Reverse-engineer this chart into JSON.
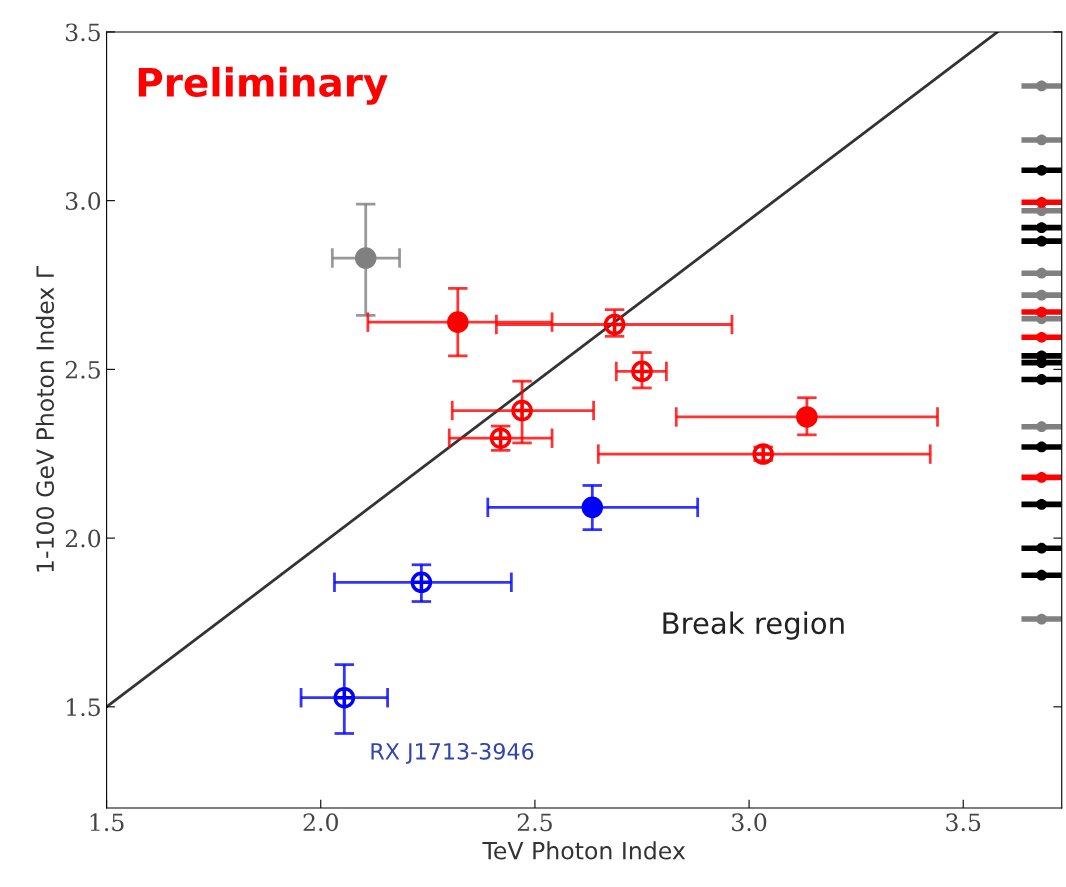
{
  "chart_data": {
    "type": "scatter",
    "xlabel": "TeV Photon Index",
    "ylabel": "1-100 GeV Photon Index Γ",
    "xlim": [
      1.5,
      3.73
    ],
    "ylim": [
      1.2,
      3.5
    ],
    "xticks": [
      {
        "value": 1.5,
        "label": "1.5"
      },
      {
        "value": 2.0,
        "label": "2.0"
      },
      {
        "value": 2.5,
        "label": "2.5"
      },
      {
        "value": 3.0,
        "label": "3.0"
      },
      {
        "value": 3.5,
        "label": "3.5"
      }
    ],
    "yticks": [
      {
        "value": 1.5,
        "label": "1.5"
      },
      {
        "value": 2.0,
        "label": "2.0"
      },
      {
        "value": 2.5,
        "label": "2.5"
      },
      {
        "value": 3.0,
        "label": "3.0"
      },
      {
        "value": 3.5,
        "label": "3.5"
      }
    ],
    "grid": false,
    "legend": false,
    "marker": "circle",
    "annotations": [
      "Preliminary",
      "Break region",
      {
        "text": "RX J1713-3946",
        "x": 2.055,
        "y": 1.527
      }
    ],
    "series": [
      {
        "type": "line",
        "color": "#333333",
        "marker": "none",
        "x": [
          1.5,
          3.58
        ],
        "values": [
          1.5,
          3.5
        ]
      },
      {
        "color": "#808080",
        "x": [
          2.105
        ],
        "values": [
          2.83
        ],
        "errors": [
          [
            2.66,
            2.99
          ]
        ],
        "xerrors": [
          [
            2.027,
            2.184
          ]
        ]
      },
      {
        "color": "#ff0000",
        "x": [
          2.32,
          3.135
        ],
        "values": [
          2.64,
          2.359
        ],
        "errors": [
          [
            2.54,
            2.74
          ],
          [
            2.306,
            2.416
          ]
        ],
        "xerrors": [
          [
            2.11,
            2.54
          ],
          [
            2.83,
            3.44
          ]
        ]
      },
      {
        "color": "#ff0000",
        "marker": "cross",
        "x": [
          2.686,
          2.75,
          2.47,
          2.42,
          3.033
        ],
        "values": [
          2.633,
          2.494,
          2.378,
          2.296,
          2.249
        ],
        "errors": [
          [
            2.598,
            2.677
          ],
          [
            2.445,
            2.55
          ],
          [
            2.282,
            2.465
          ],
          [
            2.26,
            2.332
          ],
          [
            2.23,
            2.27
          ]
        ],
        "xerrors": [
          [
            2.41,
            2.96
          ],
          [
            2.69,
            2.807
          ],
          [
            2.307,
            2.637
          ],
          [
            2.3,
            2.54
          ],
          [
            2.648,
            3.423
          ]
        ]
      },
      {
        "color": "#0000ff",
        "x": [
          2.634
        ],
        "values": [
          2.091
        ],
        "errors": [
          [
            2.025,
            2.156
          ]
        ],
        "xerrors": [
          [
            2.39,
            2.88
          ]
        ]
      },
      {
        "color": "#0000ff",
        "marker": "cross",
        "x": [
          2.235,
          2.055
        ],
        "values": [
          1.869,
          1.527
        ],
        "errors": [
          [
            1.812,
            1.921
          ],
          [
            1.421,
            1.625
          ]
        ],
        "xerrors": [
          [
            2.032,
            2.445
          ],
          [
            1.954,
            2.156
          ]
        ]
      },
      {
        "color": "#808080",
        "x": [
          3.683,
          3.683,
          3.683,
          3.683,
          3.683,
          3.683,
          3.683,
          3.683
        ],
        "values": [
          3.34,
          3.18,
          2.97,
          2.785,
          2.72,
          2.65,
          2.33,
          1.76
        ],
        "xerrors": [
          0.047,
          0.047,
          0.047,
          0.047,
          0.047,
          0.047,
          0.047,
          0.047
        ]
      },
      {
        "color": "#000000",
        "x": [
          3.683,
          3.683,
          3.683,
          3.683,
          3.683,
          3.683,
          3.683,
          3.683,
          3.683,
          3.683
        ],
        "values": [
          3.09,
          2.92,
          2.88,
          2.54,
          2.47,
          2.27,
          2.1,
          1.97,
          1.89,
          2.52
        ],
        "xerrors": [
          0.047,
          0.047,
          0.047,
          0.047,
          0.047,
          0.047,
          0.047,
          0.047,
          0.047,
          0.047
        ]
      },
      {
        "color": "#ff0000",
        "x": [
          3.683,
          3.683,
          3.683,
          3.683
        ],
        "values": [
          2.995,
          2.67,
          2.595,
          2.18
        ],
        "xerrors": [
          0.047,
          0.047,
          0.047,
          0.047
        ]
      }
    ]
  }
}
